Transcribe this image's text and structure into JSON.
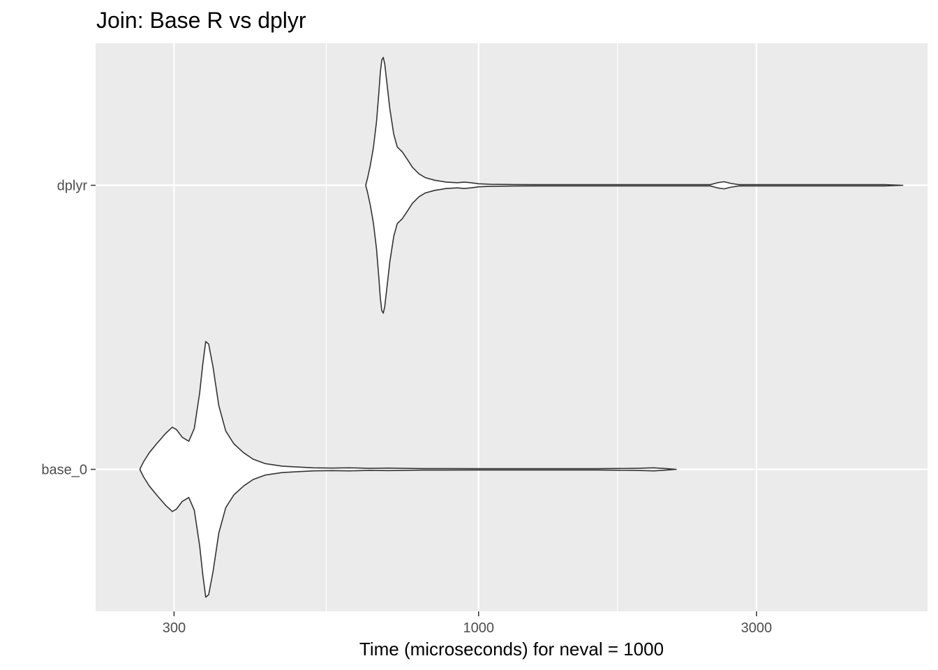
{
  "chart_data": {
    "type": "violin",
    "title": "Join: Base R vs dplyr",
    "xlabel": "Time (microseconds) for neval = 1000",
    "ylabel": "",
    "x_scale": "log10",
    "xlim": [
      220,
      5900
    ],
    "x_ticks": [
      300,
      1000,
      3000
    ],
    "x_tick_labels": [
      "300",
      "1000",
      "3000"
    ],
    "x_minor_breaks": [
      547.7,
      1732.1
    ],
    "grid": true,
    "panel_background": "#EBEBEB",
    "grid_color": "#FFFFFF",
    "violin_fill": "#FFFFFF",
    "violin_outline": "#333333",
    "categories": [
      "dplyr",
      "base_0"
    ],
    "series": [
      {
        "name": "dplyr",
        "min": 640,
        "max": 5350,
        "density": [
          [
            640,
            0.0
          ],
          [
            645,
            0.06
          ],
          [
            652,
            0.16
          ],
          [
            660,
            0.3
          ],
          [
            668,
            0.5
          ],
          [
            674,
            0.72
          ],
          [
            678,
            0.88
          ],
          [
            682,
            0.98
          ],
          [
            686,
            1.0
          ],
          [
            690,
            0.95
          ],
          [
            696,
            0.8
          ],
          [
            704,
            0.6
          ],
          [
            715,
            0.4
          ],
          [
            725,
            0.3
          ],
          [
            740,
            0.26
          ],
          [
            755,
            0.2
          ],
          [
            770,
            0.14
          ],
          [
            790,
            0.09
          ],
          [
            810,
            0.06
          ],
          [
            840,
            0.04
          ],
          [
            880,
            0.025
          ],
          [
            920,
            0.02
          ],
          [
            945,
            0.025
          ],
          [
            970,
            0.02
          ],
          [
            1000,
            0.012
          ],
          [
            1050,
            0.008
          ],
          [
            1150,
            0.006
          ],
          [
            1300,
            0.004
          ],
          [
            1500,
            0.003
          ],
          [
            1800,
            0.003
          ],
          [
            2200,
            0.003
          ],
          [
            2500,
            0.005
          ],
          [
            2570,
            0.02
          ],
          [
            2640,
            0.028
          ],
          [
            2710,
            0.015
          ],
          [
            2800,
            0.005
          ],
          [
            3200,
            0.003
          ],
          [
            4000,
            0.002
          ],
          [
            5000,
            0.002
          ],
          [
            5350,
            0.0
          ]
        ]
      },
      {
        "name": "base_0",
        "min": 262,
        "max": 2185,
        "density": [
          [
            262,
            0.0
          ],
          [
            266,
            0.06
          ],
          [
            272,
            0.13
          ],
          [
            280,
            0.2
          ],
          [
            290,
            0.28
          ],
          [
            298,
            0.33
          ],
          [
            303,
            0.31
          ],
          [
            310,
            0.25
          ],
          [
            318,
            0.22
          ],
          [
            325,
            0.32
          ],
          [
            332,
            0.6
          ],
          [
            336,
            0.82
          ],
          [
            340,
            1.0
          ],
          [
            344,
            0.98
          ],
          [
            350,
            0.8
          ],
          [
            358,
            0.5
          ],
          [
            368,
            0.3
          ],
          [
            380,
            0.2
          ],
          [
            395,
            0.13
          ],
          [
            410,
            0.08
          ],
          [
            430,
            0.045
          ],
          [
            460,
            0.025
          ],
          [
            490,
            0.018
          ],
          [
            520,
            0.012
          ],
          [
            560,
            0.01
          ],
          [
            600,
            0.012
          ],
          [
            650,
            0.008
          ],
          [
            700,
            0.01
          ],
          [
            800,
            0.006
          ],
          [
            1000,
            0.004
          ],
          [
            1300,
            0.003
          ],
          [
            1600,
            0.003
          ],
          [
            1850,
            0.008
          ],
          [
            2000,
            0.012
          ],
          [
            2100,
            0.006
          ],
          [
            2185,
            0.0
          ]
        ]
      }
    ]
  }
}
